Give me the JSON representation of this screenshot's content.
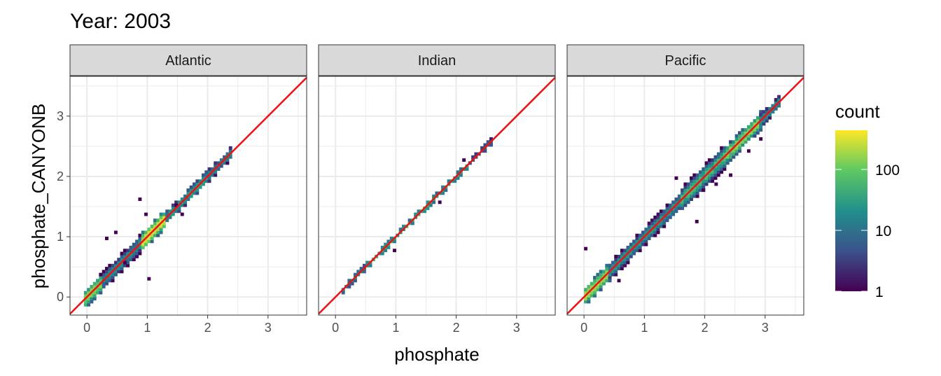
{
  "chart_data": {
    "type": "heatmap",
    "title": "Year: 2003",
    "xlabel": "phosphate",
    "ylabel": "phosphate_CANYONB",
    "xlim": [
      -0.28,
      3.64
    ],
    "ylim": [
      -0.3,
      3.66
    ],
    "x_ticks": [
      "0",
      "1",
      "2",
      "3"
    ],
    "y_ticks": [
      "0",
      "1",
      "2",
      "3"
    ],
    "grid": true,
    "binwidth": 0.05,
    "reference_line": {
      "slope": 1,
      "intercept": 0,
      "color": "#ee1111"
    },
    "legend": {
      "title": "count",
      "scale": "log10",
      "range": [
        1,
        440
      ],
      "ticks": [
        "1",
        "10",
        "100"
      ],
      "placement": "right",
      "colors": [
        "#440154",
        "#3b528b",
        "#21908c",
        "#5dc863",
        "#fde725"
      ]
    },
    "facets": [
      {
        "name": "Atlantic",
        "segments": [
          [
            -0.05,
            0.25,
            150,
            3
          ],
          [
            0.25,
            0.9,
            20,
            3
          ],
          [
            0.9,
            1.3,
            300,
            3
          ],
          [
            1.3,
            2.0,
            30,
            2
          ],
          [
            2.0,
            2.35,
            15,
            2
          ]
        ],
        "outliers": [
          [
            1.0,
            0.28
          ],
          [
            0.45,
            1.05
          ],
          [
            0.3,
            0.95
          ],
          [
            0.85,
            1.6
          ],
          [
            0.95,
            1.35
          ],
          [
            1.45,
            1.5
          ],
          [
            1.55,
            1.35
          ],
          [
            0.6,
            0.55
          ],
          [
            0.2,
            0.35
          ]
        ]
      },
      {
        "name": "Indian",
        "segments": [
          [
            0.1,
            0.5,
            15,
            1
          ],
          [
            0.5,
            1.6,
            40,
            1
          ],
          [
            1.6,
            2.2,
            30,
            1
          ],
          [
            2.2,
            2.55,
            8,
            1
          ]
        ],
        "outliers": [
          [
            0.95,
            0.75
          ],
          [
            1.7,
            1.55
          ],
          [
            2.1,
            2.25
          ]
        ]
      },
      {
        "name": "Pacific",
        "segments": [
          [
            -0.02,
            0.4,
            200,
            3
          ],
          [
            0.4,
            1.6,
            25,
            3
          ],
          [
            1.6,
            2.3,
            60,
            4
          ],
          [
            2.3,
            2.9,
            150,
            3
          ],
          [
            2.9,
            3.2,
            20,
            2
          ]
        ],
        "outliers": [
          [
            0.0,
            0.78
          ],
          [
            1.84,
            1.23
          ],
          [
            2.16,
            1.85
          ],
          [
            1.95,
            1.75
          ],
          [
            0.55,
            0.25
          ],
          [
            1.5,
            1.95
          ],
          [
            2.4,
            2.0
          ],
          [
            2.7,
            2.4
          ],
          [
            2.9,
            2.6
          ]
        ]
      }
    ]
  }
}
